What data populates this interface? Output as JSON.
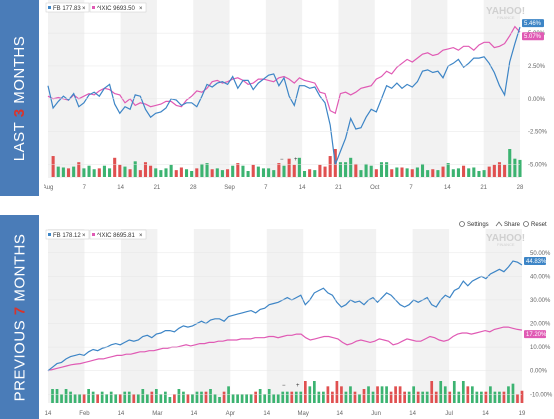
{
  "labels": {
    "top_prefix": "LAST ",
    "top_highlight": "3",
    "top_suffix": " MONTHS",
    "bottom_prefix": "PREVIOUS ",
    "bottom_highlight": "7",
    "bottom_suffix": " MONTHS"
  },
  "toolbar": {
    "settings": "Settings",
    "share": "Share",
    "reset": "Reset"
  },
  "watermark": {
    "brand": "YAHOO!",
    "sub": "FINANCE"
  },
  "zoom": {
    "minus": "−",
    "plus": "+"
  },
  "colors": {
    "fb": "#3d85c6",
    "ixic": "#e05ab4",
    "vol_up": "#3cb371",
    "vol_down": "#e05050"
  },
  "chart_data": [
    {
      "type": "line",
      "legend": [
        "FB 177.83",
        "^IXIC 9693.50"
      ],
      "end_tags": [
        "5.46%",
        "5.07%"
      ],
      "x_ticks": [
        "Aug",
        "7",
        "14",
        "21",
        "28",
        "Sep",
        "7",
        "14",
        "21",
        "Oct",
        "7",
        "14",
        "21",
        "28"
      ],
      "y_ticks": [
        "5.00%",
        "2.50%",
        "0.00%",
        "-2.50%",
        "-5.00%"
      ],
      "ylim": [
        -5.8,
        6.0
      ],
      "series": [
        {
          "name": "FB 177.83",
          "values": [
            1.0,
            -0.7,
            -0.2,
            0.2,
            -0.1,
            0.4,
            -0.6,
            -0.3,
            0.3,
            0.5,
            0.2,
            0.8,
            1.1,
            -0.4,
            -1.1,
            -0.6,
            -0.8,
            0.3,
            0.2,
            -0.8,
            -1.4,
            -1.1,
            -1.0,
            -0.7,
            0.0,
            -0.1,
            -0.5,
            -0.3,
            -0.3,
            -0.6,
            0.2,
            1.1,
            0.9,
            1.2,
            1.3,
            1.1,
            1.7,
            0.8,
            1.4,
            1.4,
            0.7,
            1.2,
            1.5,
            1.8,
            1.9,
            1.0,
            1.6,
            0.2,
            -0.5,
            1.0,
            1.0,
            0.8,
            0.9,
            0.2,
            -0.3,
            -2.0,
            -5.0,
            -4.0,
            -3.0,
            -1.5,
            -2.3,
            -2.2,
            -1.4,
            -0.8,
            -1.0,
            0.0,
            1.0,
            0.8,
            1.2,
            0.8,
            1.1,
            0.9,
            1.3,
            2.1,
            2.2,
            2.0,
            2.1,
            1.6,
            2.5,
            2.7,
            3.0,
            2.4,
            2.7,
            3.1,
            3.1,
            3.2,
            2.7,
            2.0,
            1.0,
            0.3,
            2.8,
            4.2,
            5.46
          ]
        },
        {
          "name": "^IXIC 9693.50",
          "values": [
            0.2,
            0.0,
            0.1,
            0.0,
            -0.1,
            0.3,
            0.0,
            0.2,
            0.4,
            0.3,
            0.6,
            0.8,
            0.7,
            0.4,
            0.3,
            -0.3,
            0.0,
            -0.5,
            -0.3,
            -0.4,
            -0.6,
            -0.5,
            -0.4,
            -0.2,
            -0.2,
            -0.5,
            -0.6,
            -0.1,
            0.2,
            0.6,
            0.5,
            0.8,
            1.3,
            1.4,
            1.2,
            1.3,
            1.5,
            1.6,
            1.4,
            1.1,
            1.2,
            1.5,
            1.5,
            1.4,
            1.3,
            1.6,
            1.7,
            1.5,
            1.2,
            1.6,
            1.4,
            1.3,
            1.2,
            0.5,
            0.4,
            -0.9,
            -1.1,
            0.4,
            0.5,
            0.3,
            0.5,
            0.8,
            0.9,
            1.0,
            1.5,
            1.7,
            2.1,
            1.9,
            2.4,
            2.7,
            3.0,
            2.8,
            3.1,
            3.4,
            3.5,
            3.3,
            3.4,
            3.7,
            3.8,
            3.9,
            3.7,
            4.0,
            4.0,
            3.7,
            4.1,
            4.3,
            4.3,
            3.9,
            4.0,
            4.2,
            4.8,
            5.5,
            5.07
          ]
        }
      ]
    },
    {
      "type": "line",
      "legend": [
        "FB 178.12",
        "^IXIC 8695.81"
      ],
      "end_tags": [
        "44.83%",
        "17.20%"
      ],
      "x_ticks": [
        "14",
        "Feb",
        "14",
        "Mar",
        "14",
        "Apr",
        "14",
        "May",
        "14",
        "Jun",
        "14",
        "Jul",
        "14",
        "19"
      ],
      "y_ticks": [
        "50.00%",
        "40.00%",
        "30.00%",
        "20.00%",
        "10.00%",
        "0.00%",
        "-10.00%"
      ],
      "ylim": [
        -12,
        55
      ],
      "series": [
        {
          "name": "FB 178.12",
          "values": [
            0.0,
            1.5,
            3.0,
            3.5,
            5.0,
            6.0,
            6.5,
            7.0,
            6.5,
            8.0,
            9.0,
            8.5,
            9.5,
            10.0,
            11.0,
            11.5,
            11.0,
            12.0,
            13.0,
            12.5,
            13.0,
            14.5,
            15.0,
            14.0,
            15.5,
            16.0,
            17.0,
            17.0,
            16.5,
            18.0,
            19.0,
            18.5,
            19.0,
            20.0,
            21.0,
            20.0,
            21.5,
            22.0,
            22.0,
            21.0,
            23.0,
            23.5,
            24.0,
            24.5,
            25.0,
            25.5,
            24.5,
            26.0,
            26.5,
            28.0,
            28.5,
            29.0,
            30.0,
            31.0,
            30.0,
            31.0,
            32.0,
            28.0,
            30.0,
            33.0,
            34.0,
            35.0,
            33.0,
            32.0,
            29.0,
            27.0,
            28.0,
            30.0,
            29.0,
            29.5,
            28.0,
            30.0,
            31.0,
            29.0,
            31.0,
            33.0,
            32.0,
            30.0,
            28.0,
            27.0,
            28.0,
            30.0,
            29.0,
            30.0,
            31.0,
            28.0,
            27.0,
            30.0,
            32.0,
            31.0,
            34.0,
            35.0,
            38.0,
            36.0,
            38.0,
            39.0,
            40.0,
            39.0,
            41.0,
            42.0,
            43.0,
            42.0,
            44.0,
            46.5,
            46.0,
            44.83
          ]
        },
        {
          "name": "^IXIC 8695.81",
          "values": [
            0.0,
            0.5,
            1.0,
            1.5,
            2.0,
            2.5,
            2.8,
            3.0,
            3.5,
            4.0,
            4.5,
            5.0,
            5.0,
            5.5,
            6.0,
            6.5,
            6.5,
            7.0,
            7.0,
            7.5,
            8.0,
            8.0,
            8.5,
            8.5,
            9.0,
            9.5,
            9.5,
            10.0,
            10.0,
            10.5,
            11.0,
            10.5,
            11.0,
            11.5,
            11.5,
            12.0,
            12.0,
            12.5,
            12.5,
            13.0,
            13.0,
            13.0,
            13.5,
            13.5,
            13.5,
            14.0,
            14.0,
            14.0,
            14.5,
            14.5,
            14.0,
            14.5,
            15.0,
            15.0,
            15.5,
            15.5,
            14.0,
            13.0,
            13.5,
            14.0,
            14.5,
            14.5,
            14.0,
            13.5,
            12.0,
            11.0,
            11.5,
            12.5,
            13.0,
            12.5,
            12.0,
            12.5,
            13.5,
            13.0,
            12.5,
            11.0,
            11.5,
            12.5,
            13.5,
            13.0,
            12.5,
            12.5,
            13.5,
            14.5,
            14.0,
            13.0,
            12.5,
            13.0,
            14.5,
            15.5,
            16.0,
            16.0,
            15.5,
            16.0,
            16.5,
            17.0,
            16.5,
            17.5,
            18.0,
            18.5,
            18.5,
            18.0,
            17.5,
            17.2
          ]
        }
      ]
    }
  ]
}
